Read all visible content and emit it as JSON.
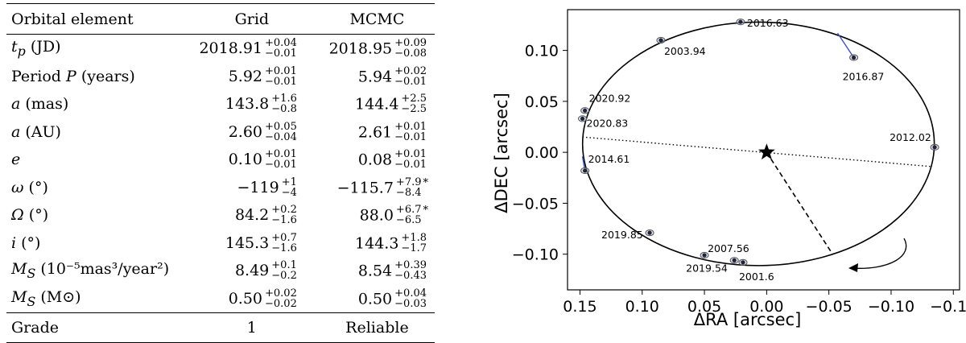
{
  "table": {
    "headers": [
      "Orbital element",
      "Grid",
      "MCMC"
    ],
    "rows": [
      {
        "name": "t",
        "sub": "p",
        "unit": " (JD)",
        "grid": {
          "v": "2018.91",
          "up": "+0.04",
          "lo": "−0.01"
        },
        "mcmc": {
          "v": "2018.95",
          "up": "+0.09",
          "lo": "−0.08"
        },
        "star": ""
      },
      {
        "name": "Period ",
        "sym": "P",
        "unit": " (years)",
        "grid": {
          "v": "5.92",
          "up": "+0.01",
          "lo": "−0.01"
        },
        "mcmc": {
          "v": "5.94",
          "up": "+0.02",
          "lo": "−0.01"
        },
        "star": ""
      },
      {
        "sym": "a",
        "unit": " (mas)",
        "grid": {
          "v": "143.8",
          "up": "+1.6",
          "lo": "−0.8"
        },
        "mcmc": {
          "v": "144.4",
          "up": "+2.5",
          "lo": "−2.5"
        },
        "star": ""
      },
      {
        "sym": "a",
        "unit": " (AU)",
        "grid": {
          "v": "2.60",
          "up": "+0.05",
          "lo": "−0.04"
        },
        "mcmc": {
          "v": "2.61",
          "up": "+0.01",
          "lo": "−0.01"
        },
        "star": ""
      },
      {
        "sym": "e",
        "unit": "",
        "grid": {
          "v": "0.10",
          "up": "+0.01",
          "lo": "−0.01"
        },
        "mcmc": {
          "v": "0.08",
          "up": "+0.01",
          "lo": "−0.01"
        },
        "star": ""
      },
      {
        "sym": "ω",
        "unit": " (°)",
        "grid": {
          "v": "−119",
          "up": "+1",
          "lo": "−4"
        },
        "mcmc": {
          "v": "−115.7",
          "up": "+7.9",
          "lo": "−8.4"
        },
        "star": "*"
      },
      {
        "sym": "Ω",
        "unit": " (°)",
        "grid": {
          "v": "84.2",
          "up": "+0.2",
          "lo": "−1.6"
        },
        "mcmc": {
          "v": "88.0",
          "up": "+6.7",
          "lo": "−6.5"
        },
        "star": "*"
      },
      {
        "sym": "i",
        "unit": " (°)",
        "grid": {
          "v": "145.3",
          "up": "+0.7",
          "lo": "−1.6"
        },
        "mcmc": {
          "v": "144.3",
          "up": "+1.8",
          "lo": "−1.7"
        },
        "star": ""
      },
      {
        "name": "M",
        "sub": "S",
        "unit": " (10⁻⁵mas³/year²)",
        "grid": {
          "v": "8.49",
          "up": "+0.1",
          "lo": "−0.2"
        },
        "mcmc": {
          "v": "8.54",
          "up": "+0.39",
          "lo": "−0.43"
        },
        "star": ""
      },
      {
        "name": "M",
        "sub": "S",
        "unit": " (M⊙)",
        "grid": {
          "v": "0.50",
          "up": "+0.02",
          "lo": "−0.02"
        },
        "mcmc": {
          "v": "0.50",
          "up": "+0.04",
          "lo": "−0.03"
        },
        "star": ""
      }
    ],
    "grade": {
      "name": "Grade",
      "grid": "1",
      "mcmc": "Reliable"
    }
  },
  "chart_data": {
    "type": "scatter",
    "xlabel": "ΔRA [arcsec]",
    "ylabel": "ΔDEC [arcsec]",
    "xlim": [
      0.16,
      -0.155
    ],
    "ylim": [
      -0.135,
      0.14
    ],
    "xticks": [
      0.15,
      0.1,
      0.05,
      0.0,
      -0.05,
      -0.1,
      -0.15
    ],
    "xtick_labels": [
      "0.15",
      "0.10",
      "0.05",
      "0.00",
      "−0.05",
      "−0.10",
      "−0.15"
    ],
    "yticks": [
      0.1,
      0.05,
      0.0,
      -0.05,
      -0.1
    ],
    "ytick_labels": [
      "0.10",
      "0.05",
      "0.00",
      "−0.05",
      "−0.10"
    ],
    "grid": false,
    "orbit_ellipse": {
      "center": [
        0.0066,
        0.0083
      ],
      "rx": 0.1413,
      "ry": 0.1195
    },
    "primary_star": [
      0.0,
      0.0
    ],
    "line_of_nodes": [
      [
        0.148,
        0.015
      ],
      [
        -0.133,
        -0.014
      ]
    ],
    "periastron_line": [
      [
        0.0,
        0.0
      ],
      [
        -0.053,
        -0.1
      ]
    ],
    "motion_arrow": "clockwise",
    "epochs": [
      {
        "label": "2016.63",
        "obs": [
          0.021,
          0.128
        ],
        "model": [
          0.021,
          0.127
        ]
      },
      {
        "label": "2003.94",
        "obs": [
          0.085,
          0.11
        ],
        "model": [
          0.083,
          0.11
        ]
      },
      {
        "label": "2016.87",
        "obs": [
          -0.07,
          0.093
        ],
        "model": [
          -0.057,
          0.117
        ]
      },
      {
        "label": "2020.92",
        "obs": [
          0.146,
          0.041
        ],
        "model": [
          0.146,
          0.04
        ]
      },
      {
        "label": "2020.83",
        "obs": [
          0.148,
          0.033
        ],
        "model": [
          0.148,
          0.033
        ]
      },
      {
        "label": "2012.02",
        "obs": [
          -0.135,
          0.005
        ],
        "model": [
          -0.136,
          0.005
        ]
      },
      {
        "label": "2014.61",
        "obs": [
          0.146,
          -0.018
        ],
        "model": [
          0.148,
          -0.004
        ]
      },
      {
        "label": "2019.85",
        "obs": [
          0.094,
          -0.079
        ],
        "model": [
          0.094,
          -0.079
        ]
      },
      {
        "label": "2007.56",
        "obs": [
          0.05,
          -0.101
        ],
        "model": [
          0.05,
          -0.101
        ]
      },
      {
        "label": "2019.54",
        "obs": [
          0.026,
          -0.106
        ],
        "model": [
          0.026,
          -0.106
        ]
      },
      {
        "label": "2001.6",
        "obs": [
          0.019,
          -0.108
        ],
        "model": [
          0.021,
          -0.107
        ]
      }
    ]
  }
}
